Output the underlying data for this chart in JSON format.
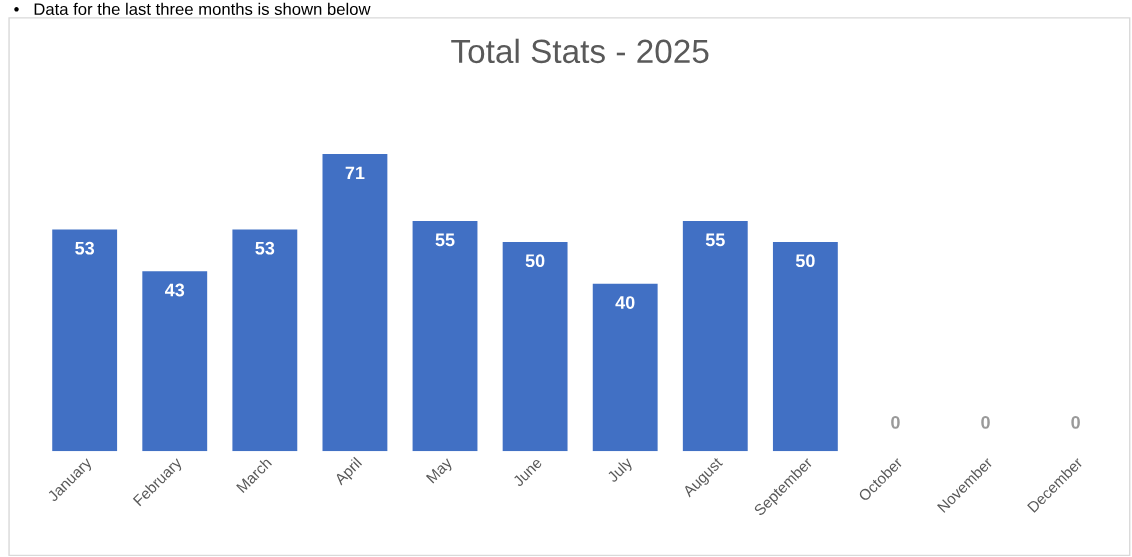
{
  "chart_data": {
    "type": "bar",
    "title": "Total Stats - 2025",
    "categories": [
      "January",
      "February",
      "March",
      "April",
      "May",
      "June",
      "July",
      "August",
      "September",
      "October",
      "November",
      "December"
    ],
    "values": [
      53,
      43,
      53,
      71,
      55,
      50,
      40,
      55,
      50,
      0,
      0,
      0
    ],
    "color": "#4170c4",
    "data_labels": true,
    "grid": false,
    "legend": false,
    "annotations": [
      "•   Data for the last three months is shown below"
    ]
  }
}
